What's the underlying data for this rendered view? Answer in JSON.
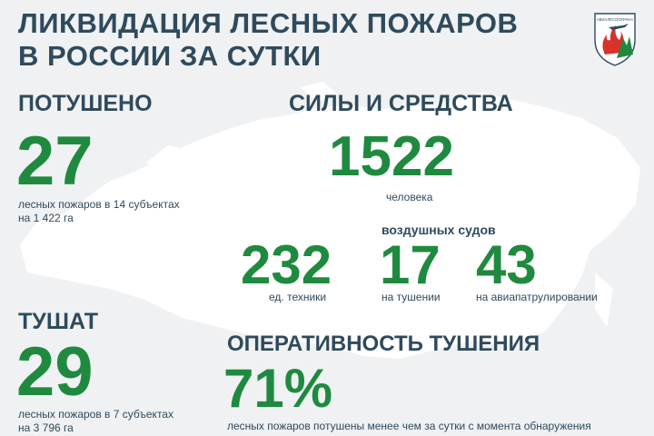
{
  "header": {
    "title": "ЛИКВИДАЦИЯ ЛЕСНЫХ ПОЖАРОВ\nВ РОССИИ ЗА СУТКИ",
    "logo_text": "АВИАЛЕСООХРАНА"
  },
  "extinguished": {
    "heading": "ПОТУШЕНО",
    "value": "27",
    "caption_line1": "лесных пожаров в 14 субъектах",
    "caption_line2": "на 1 422 га"
  },
  "being_extinguished": {
    "heading": "ТУШАТ",
    "value": "29",
    "caption_line1": "лесных пожаров в 7 субъектах",
    "caption_line2": "на 3 796 га"
  },
  "forces": {
    "heading": "СИЛЫ И СРЕДСТВА",
    "people_value": "1522",
    "people_caption": "человека",
    "aircraft_heading": "воздушных судов",
    "equipment_value": "232",
    "equipment_caption": "ед. техники",
    "aircraft_firefighting_value": "17",
    "aircraft_firefighting_caption": "на тушении",
    "aircraft_patrol_value": "43",
    "aircraft_patrol_caption": "на авиапатрулировании"
  },
  "efficiency": {
    "heading": "ОПЕРАТИВНОСТЬ ТУШЕНИЯ",
    "value": "71%",
    "caption": "лесных пожаров потушены  менее чем за сутки  с момента обнаружения"
  },
  "colors": {
    "background": "#eff1f2",
    "map": "#ffffff",
    "dark_text": "#2f4a5c",
    "accent_green": "#1f8a3f",
    "logo_red": "#d8322b"
  }
}
